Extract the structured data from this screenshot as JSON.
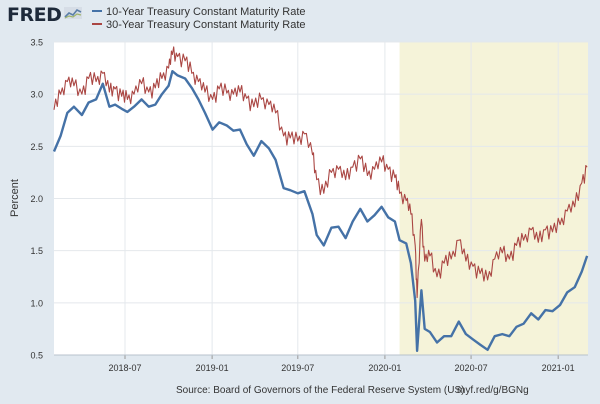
{
  "header": {
    "logo_text": "FRED"
  },
  "footer": {
    "source": "Source: Board of Governors of the Federal Reserve System (US)",
    "shortlink": "myf.red/g/BGNg"
  },
  "colors": {
    "series1": "#4572a7",
    "series2": "#aa4643",
    "recession_shade": "#f5f3d9",
    "plot_bg": "#ffffff",
    "page_bg": "#e1e9f0",
    "grid": "#e4e8ec"
  },
  "chart_data": {
    "type": "line",
    "title": "",
    "xlabel": "",
    "ylabel": "Percent",
    "ylim": [
      0.5,
      3.5
    ],
    "yticks": [
      "0.5",
      "1.0",
      "1.5",
      "2.0",
      "2.5",
      "3.0",
      "3.5"
    ],
    "xlim": [
      "2018-02-01",
      "2021-03-05"
    ],
    "xticks": [
      "2018-07",
      "2019-01",
      "2019-07",
      "2020-01",
      "2020-07",
      "2021-01"
    ],
    "grid": true,
    "legend_position": "top-left",
    "shaded_ranges": [
      {
        "start": "2020-02-01",
        "end": "2021-03-05"
      }
    ],
    "series": [
      {
        "name": "10-Year Treasury Constant Maturity Rate",
        "x": [
          "2018-02-01",
          "2018-02-15",
          "2018-03-01",
          "2018-03-15",
          "2018-04-01",
          "2018-04-15",
          "2018-05-01",
          "2018-05-15",
          "2018-05-29",
          "2018-06-10",
          "2018-06-24",
          "2018-07-06",
          "2018-07-20",
          "2018-08-05",
          "2018-08-20",
          "2018-09-03",
          "2018-09-17",
          "2018-10-01",
          "2018-10-09",
          "2018-10-20",
          "2018-11-05",
          "2018-11-19",
          "2018-12-03",
          "2018-12-17",
          "2019-01-02",
          "2019-01-16",
          "2019-02-01",
          "2019-02-15",
          "2019-03-01",
          "2019-03-15",
          "2019-03-30",
          "2019-04-15",
          "2019-05-01",
          "2019-05-15",
          "2019-06-01",
          "2019-06-15",
          "2019-07-01",
          "2019-07-15",
          "2019-08-01",
          "2019-08-10",
          "2019-08-25",
          "2019-09-10",
          "2019-09-25",
          "2019-10-10",
          "2019-10-25",
          "2019-11-10",
          "2019-11-25",
          "2019-12-10",
          "2019-12-25",
          "2020-01-08",
          "2020-01-22",
          "2020-02-01",
          "2020-02-15",
          "2020-02-25",
          "2020-03-05",
          "2020-03-09",
          "2020-03-18",
          "2020-03-25",
          "2020-04-05",
          "2020-04-20",
          "2020-05-05",
          "2020-05-20",
          "2020-06-05",
          "2020-06-20",
          "2020-07-05",
          "2020-07-20",
          "2020-08-05",
          "2020-08-20",
          "2020-09-05",
          "2020-09-20",
          "2020-10-05",
          "2020-10-20",
          "2020-11-05",
          "2020-11-20",
          "2020-12-05",
          "2020-12-20",
          "2021-01-05",
          "2021-01-20",
          "2021-02-05",
          "2021-02-20",
          "2021-03-03"
        ],
        "values": [
          2.45,
          2.6,
          2.82,
          2.88,
          2.8,
          2.92,
          2.95,
          3.1,
          2.88,
          2.9,
          2.86,
          2.83,
          2.88,
          2.95,
          2.88,
          2.9,
          3.0,
          3.08,
          3.22,
          3.18,
          3.15,
          3.06,
          2.95,
          2.82,
          2.66,
          2.73,
          2.7,
          2.65,
          2.66,
          2.52,
          2.41,
          2.55,
          2.48,
          2.37,
          2.1,
          2.08,
          2.05,
          2.07,
          1.85,
          1.65,
          1.55,
          1.72,
          1.73,
          1.62,
          1.78,
          1.9,
          1.78,
          1.84,
          1.92,
          1.82,
          1.78,
          1.6,
          1.57,
          1.38,
          1.02,
          0.54,
          1.12,
          0.75,
          0.72,
          0.62,
          0.68,
          0.68,
          0.82,
          0.7,
          0.65,
          0.6,
          0.55,
          0.68,
          0.7,
          0.68,
          0.77,
          0.8,
          0.9,
          0.84,
          0.93,
          0.92,
          0.98,
          1.1,
          1.15,
          1.3,
          1.45
        ]
      },
      {
        "name": "30-Year Treasury Constant Maturity Rate",
        "x": [
          "2018-02-01",
          "2018-02-15",
          "2018-03-01",
          "2018-03-15",
          "2018-04-01",
          "2018-04-15",
          "2018-05-01",
          "2018-05-15",
          "2018-05-29",
          "2018-06-10",
          "2018-06-24",
          "2018-07-06",
          "2018-07-20",
          "2018-08-05",
          "2018-08-20",
          "2018-09-03",
          "2018-09-17",
          "2018-10-01",
          "2018-10-09",
          "2018-10-20",
          "2018-11-05",
          "2018-11-19",
          "2018-12-03",
          "2018-12-17",
          "2019-01-02",
          "2019-01-16",
          "2019-02-01",
          "2019-02-15",
          "2019-03-01",
          "2019-03-15",
          "2019-03-30",
          "2019-04-15",
          "2019-05-01",
          "2019-05-15",
          "2019-06-01",
          "2019-06-15",
          "2019-07-01",
          "2019-07-15",
          "2019-08-01",
          "2019-08-10",
          "2019-08-25",
          "2019-09-10",
          "2019-09-25",
          "2019-10-10",
          "2019-10-25",
          "2019-11-10",
          "2019-11-25",
          "2019-12-10",
          "2019-12-25",
          "2020-01-08",
          "2020-01-22",
          "2020-02-01",
          "2020-02-15",
          "2020-02-25",
          "2020-03-05",
          "2020-03-09",
          "2020-03-18",
          "2020-03-25",
          "2020-04-05",
          "2020-04-20",
          "2020-05-05",
          "2020-05-20",
          "2020-06-05",
          "2020-06-20",
          "2020-07-05",
          "2020-07-20",
          "2020-08-05",
          "2020-08-20",
          "2020-09-05",
          "2020-09-20",
          "2020-10-05",
          "2020-10-20",
          "2020-11-05",
          "2020-11-20",
          "2020-12-05",
          "2020-12-20",
          "2021-01-05",
          "2021-01-20",
          "2021-02-05",
          "2021-02-20",
          "2021-03-03"
        ],
        "values": [
          2.85,
          3.0,
          3.12,
          3.08,
          3.0,
          3.15,
          3.12,
          3.2,
          3.02,
          3.05,
          2.98,
          2.95,
          3.0,
          3.1,
          3.02,
          3.06,
          3.15,
          3.25,
          3.38,
          3.36,
          3.32,
          3.2,
          3.12,
          3.02,
          2.95,
          3.05,
          3.01,
          3.0,
          3.02,
          2.96,
          2.88,
          2.95,
          2.9,
          2.82,
          2.6,
          2.58,
          2.55,
          2.62,
          2.42,
          2.18,
          2.05,
          2.25,
          2.28,
          2.18,
          2.3,
          2.38,
          2.22,
          2.28,
          2.35,
          2.28,
          2.2,
          2.05,
          1.98,
          1.85,
          1.55,
          1.05,
          1.8,
          1.4,
          1.45,
          1.25,
          1.38,
          1.42,
          1.6,
          1.4,
          1.35,
          1.28,
          1.22,
          1.42,
          1.48,
          1.42,
          1.55,
          1.6,
          1.7,
          1.58,
          1.7,
          1.68,
          1.75,
          1.88,
          1.92,
          2.15,
          2.3
        ]
      }
    ]
  }
}
